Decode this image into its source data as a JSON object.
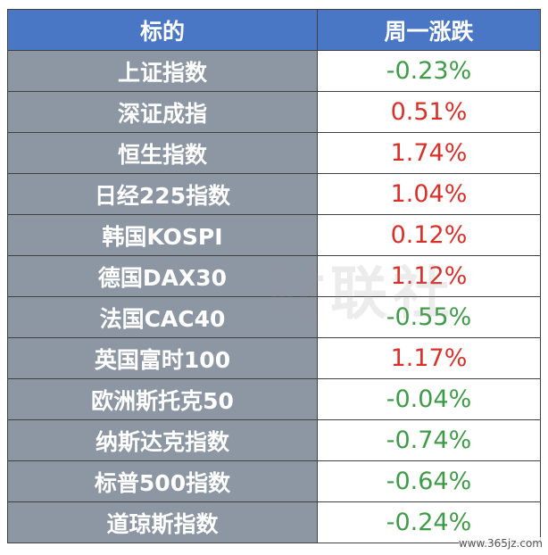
{
  "table": {
    "header": [
      "标的",
      "周一涨跌"
    ],
    "rows": [
      [
        "上证指数",
        "-0.23%"
      ],
      [
        "深证成指",
        "0.51%"
      ],
      [
        "恒生指数",
        "1.74%"
      ],
      [
        "日经225指数",
        "1.04%"
      ],
      [
        "韩国KOSPI",
        "0.12%"
      ],
      [
        "德国DAX30",
        "1.12%"
      ],
      [
        "法国CAC40",
        "-0.55%"
      ],
      [
        "英国富时100",
        "1.17%"
      ],
      [
        "欧洲斯托克50",
        "-0.04%"
      ],
      [
        "纳斯达克指数",
        "-0.74%"
      ],
      [
        "标普500指数",
        "-0.64%"
      ],
      [
        "道琼斯指数",
        "-0.24%"
      ]
    ]
  },
  "watermark": "财联社",
  "footer": "www.365jz.com"
}
